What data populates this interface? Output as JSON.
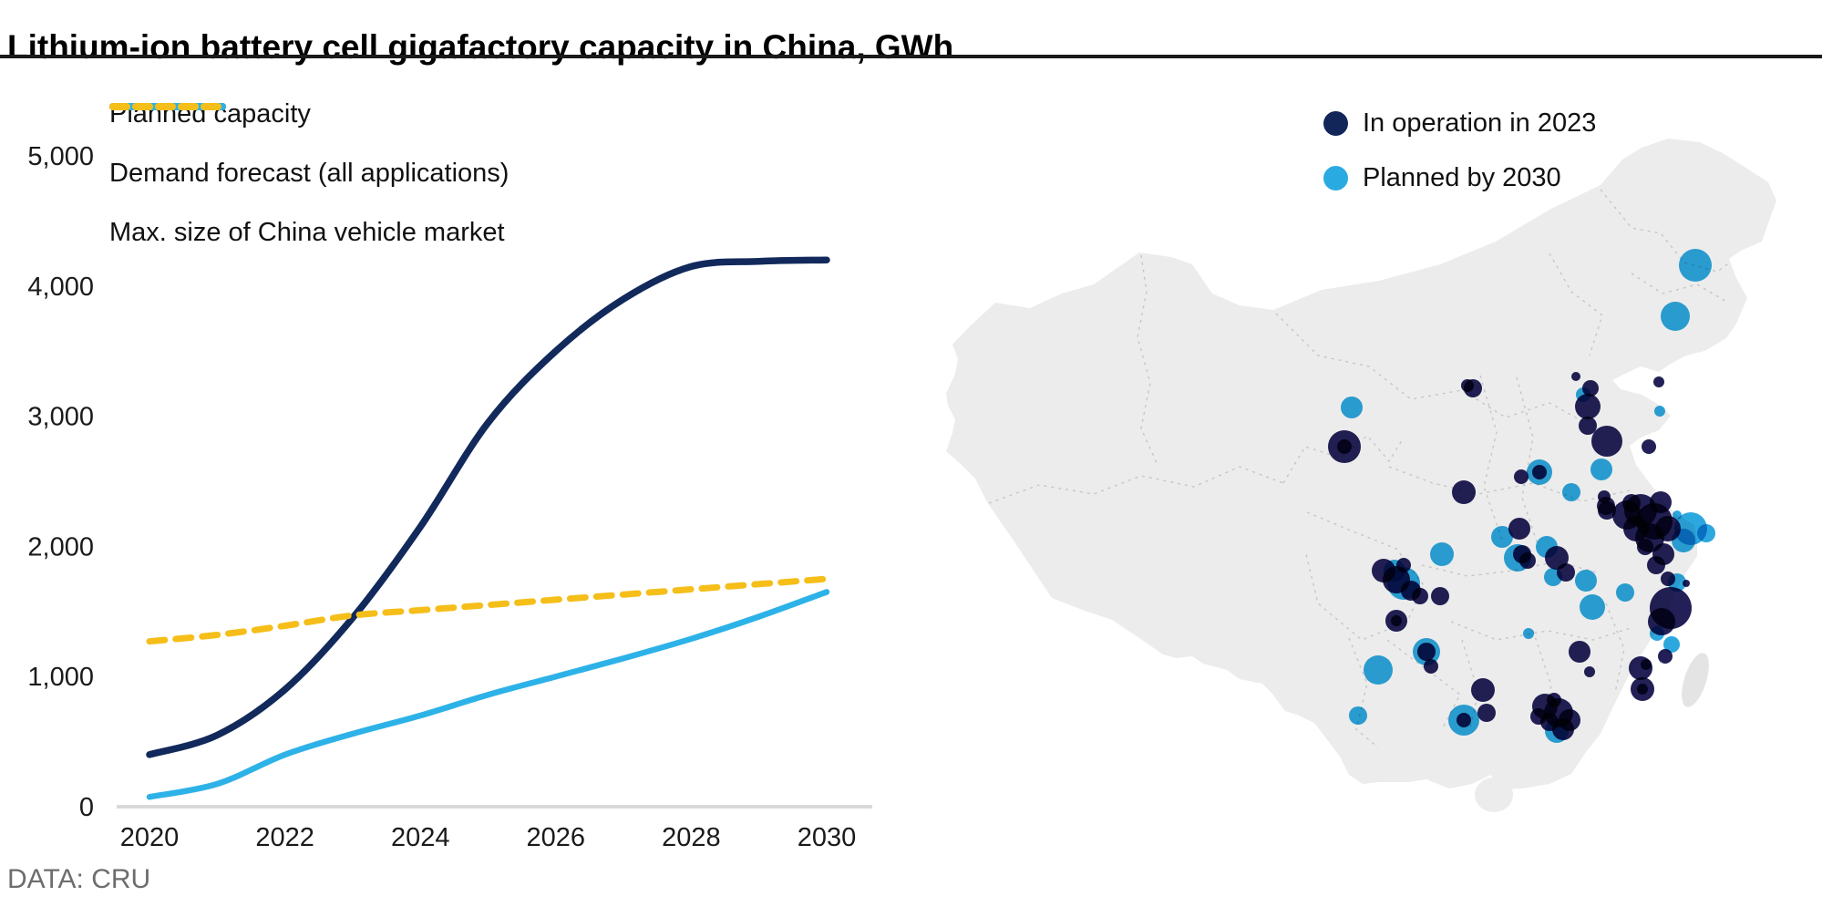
{
  "title": "Lithium-ion battery cell gigafactory capacity in China, GWh",
  "source": "DATA: CRU",
  "colors": {
    "navy_line": "#12295B",
    "cyan_line": "#2DB2E8",
    "yellow_line": "#F5BE19",
    "axis_line": "#D9D9D9",
    "tick_text": "#1A1A1A",
    "bubble_navy": "#232057",
    "bubble_blue": "#2CA8DF",
    "legend_dot_navy": "#12265A",
    "legend_dot_blue": "#29ABE2",
    "map_fill": "#ECECEC",
    "province_line": "#C6C6C6"
  },
  "chart_data": {
    "type": "line",
    "x": [
      2020,
      2021,
      2022,
      2023,
      2024,
      2025,
      2026,
      2027,
      2028,
      2029,
      2030
    ],
    "series": [
      {
        "name": "Planned capacity",
        "style": "solid",
        "color": "#12295B",
        "width": 7.5,
        "values": [
          400,
          550,
          900,
          1450,
          2150,
          2950,
          3500,
          3900,
          4150,
          4190,
          4200
        ]
      },
      {
        "name": "Demand forecast (all applications)",
        "style": "solid",
        "color": "#2DB2E8",
        "width": 6.5,
        "values": [
          75,
          175,
          400,
          560,
          700,
          860,
          1000,
          1140,
          1290,
          1460,
          1650
        ]
      },
      {
        "name": "Max. size of China vehicle market",
        "style": "dashed",
        "color": "#F5BE19",
        "width": 7,
        "values": [
          1270,
          1320,
          1390,
          1470,
          1510,
          1550,
          1590,
          1630,
          1670,
          1710,
          1750
        ]
      }
    ],
    "xlim": [
      2020,
      2030
    ],
    "ylim": [
      0,
      5000
    ],
    "xticks": [
      {
        "label": "2020",
        "v": 2020
      },
      {
        "label": "2022",
        "v": 2022
      },
      {
        "label": "2024",
        "v": 2024
      },
      {
        "label": "2026",
        "v": 2026
      },
      {
        "label": "2028",
        "v": 2028
      },
      {
        "label": "2030",
        "v": 2030
      }
    ],
    "yticks": [
      {
        "label": "0",
        "v": 0
      },
      {
        "label": "1,000",
        "v": 1000
      },
      {
        "label": "2,000",
        "v": 2000
      },
      {
        "label": "3,000",
        "v": 3000
      },
      {
        "label": "4,000",
        "v": 4000
      },
      {
        "label": "5,000",
        "v": 5000
      }
    ],
    "grid": false,
    "legend_position": "top-left"
  },
  "map": {
    "legend": [
      {
        "label": "In operation in 2023",
        "color": "#12265A"
      },
      {
        "label": "Planned by 2030",
        "color": "#29ABE2"
      }
    ],
    "bubbles": {
      "planned": [
        [
          860,
          231,
          18
        ],
        [
          838,
          287,
          16
        ],
        [
          821,
          391,
          6
        ],
        [
          737,
          373,
          8
        ],
        [
          483,
          387,
          12
        ],
        [
          757,
          455,
          12
        ],
        [
          689,
          458,
          14
        ],
        [
          724,
          480,
          10
        ],
        [
          648,
          529,
          12
        ],
        [
          665,
          552,
          15
        ],
        [
          697,
          540,
          12
        ],
        [
          704,
          573,
          10
        ],
        [
          582,
          548,
          13
        ],
        [
          530,
          566,
          12
        ],
        [
          540,
          580,
          18
        ],
        [
          855,
          520,
          18
        ],
        [
          847,
          533,
          13
        ],
        [
          872,
          525,
          10
        ],
        [
          840,
          505,
          5
        ],
        [
          840,
          579,
          10
        ],
        [
          834,
          647,
          9
        ],
        [
          747,
          606,
          14
        ],
        [
          677,
          635,
          6
        ],
        [
          740,
          577,
          12
        ],
        [
          783,
          590,
          10
        ],
        [
          818,
          635,
          8
        ],
        [
          512,
          675,
          16
        ],
        [
          490,
          725,
          10
        ],
        [
          606,
          730,
          17
        ],
        [
          565,
          655,
          15
        ],
        [
          708,
          742,
          13
        ]
      ],
      "operation": [
        [
          616,
          366,
          10
        ],
        [
          729,
          353,
          5
        ],
        [
          745,
          366,
          9
        ],
        [
          820,
          359,
          6
        ],
        [
          742,
          386,
          14
        ],
        [
          610,
          363,
          7
        ],
        [
          763,
          424,
          17
        ],
        [
          809,
          430,
          8
        ],
        [
          475,
          430,
          18
        ],
        [
          475,
          430,
          8
        ],
        [
          669,
          463,
          8
        ],
        [
          689,
          458,
          8
        ],
        [
          606,
          480,
          13
        ],
        [
          742,
          407,
          10
        ],
        [
          763,
          500,
          10
        ],
        [
          822,
          491,
          12
        ],
        [
          760,
          485,
          7
        ],
        [
          762,
          495,
          10
        ],
        [
          785,
          505,
          16
        ],
        [
          800,
          500,
          18
        ],
        [
          815,
          512,
          20
        ],
        [
          830,
          520,
          14
        ],
        [
          795,
          520,
          14
        ],
        [
          810,
          530,
          16
        ],
        [
          790,
          492,
          10
        ],
        [
          805,
          540,
          9
        ],
        [
          825,
          548,
          12
        ],
        [
          817,
          560,
          10
        ],
        [
          830,
          575,
          8
        ],
        [
          850,
          580,
          4
        ],
        [
          718,
          568,
          10
        ],
        [
          676,
          555,
          9
        ],
        [
          667,
          520,
          12
        ],
        [
          670,
          548,
          10
        ],
        [
          708,
          552,
          13
        ],
        [
          518,
          566,
          13
        ],
        [
          532,
          576,
          15
        ],
        [
          548,
          588,
          11
        ],
        [
          558,
          594,
          9
        ],
        [
          540,
          560,
          8
        ],
        [
          580,
          594,
          10
        ],
        [
          532,
          621,
          12
        ],
        [
          532,
          621,
          6
        ],
        [
          833,
          607,
          23
        ],
        [
          823,
          622,
          15
        ],
        [
          827,
          660,
          8
        ],
        [
          744,
          677,
          6
        ],
        [
          570,
          671,
          8
        ],
        [
          802,
          696,
          13
        ],
        [
          802,
          696,
          6
        ],
        [
          733,
          655,
          12
        ],
        [
          800,
          673,
          13
        ],
        [
          806,
          669,
          6
        ],
        [
          627,
          697,
          13
        ],
        [
          565,
          655,
          10
        ],
        [
          606,
          730,
          8
        ],
        [
          631,
          722,
          10
        ],
        [
          695,
          715,
          14
        ],
        [
          710,
          722,
          16
        ],
        [
          722,
          730,
          12
        ],
        [
          700,
          732,
          10
        ],
        [
          715,
          740,
          12
        ],
        [
          688,
          726,
          9
        ],
        [
          705,
          708,
          8
        ]
      ]
    }
  }
}
